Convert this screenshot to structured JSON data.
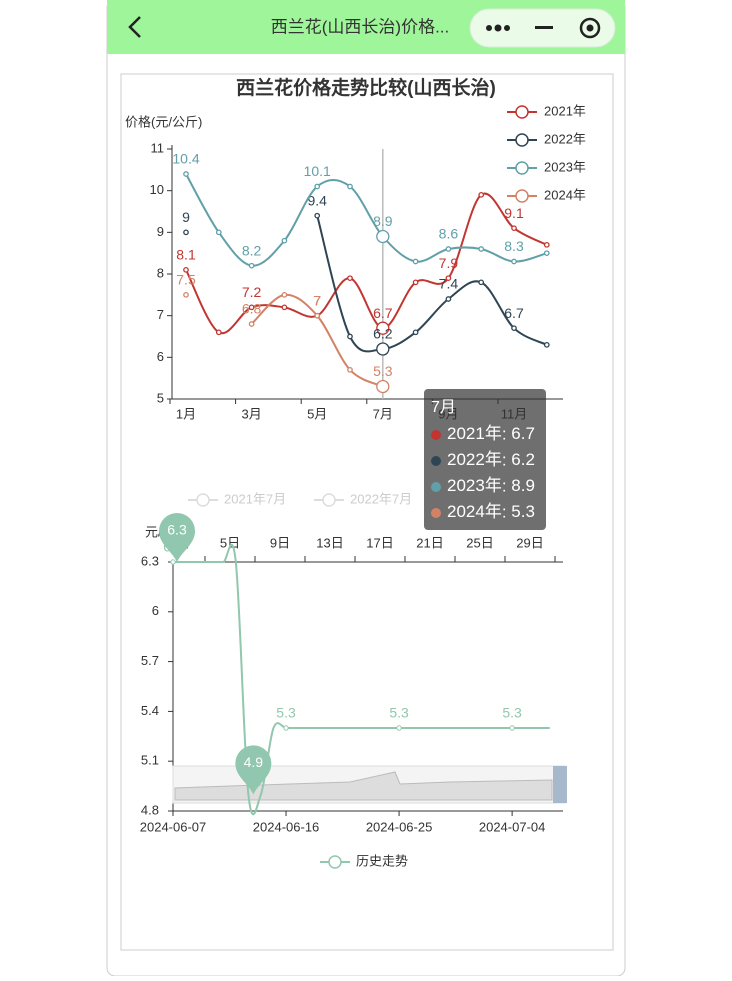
{
  "header": {
    "title": "西兰花(山西长治)价格..."
  },
  "chart_data": [
    {
      "type": "line",
      "title": "西兰花价格走势比较(山西长治)",
      "y_label": "价格(元/公斤)",
      "categories": [
        "1月",
        null,
        "3月",
        null,
        "5月",
        null,
        "7月",
        null,
        "9月",
        null,
        "11月",
        null
      ],
      "series": [
        {
          "name": "2021年",
          "color": "#c23531",
          "values": [
            8.1,
            6.6,
            7.2,
            7.2,
            7.0,
            7.9,
            6.7,
            7.8,
            7.9,
            9.9,
            9.1,
            8.7
          ]
        },
        {
          "name": "2022年",
          "color": "#2f4554",
          "values": [
            9,
            null,
            null,
            null,
            9.4,
            6.5,
            6.2,
            6.6,
            7.4,
            7.8,
            6.7,
            6.3
          ]
        },
        {
          "name": "2023年",
          "color": "#61a0a8",
          "values": [
            10.4,
            9.0,
            8.2,
            8.8,
            10.1,
            10.1,
            8.9,
            8.3,
            8.6,
            8.6,
            8.3,
            8.5
          ]
        },
        {
          "name": "2024年",
          "color": "#d48265",
          "values": [
            7.5,
            null,
            6.8,
            7.5,
            7.0,
            5.7,
            5.3,
            null,
            null,
            null,
            null,
            null
          ]
        }
      ],
      "ylim": [
        5,
        11
      ],
      "yticks": [
        5,
        6,
        7,
        8,
        9,
        10,
        11
      ],
      "legend": "top-right",
      "tooltip": "7月"
    },
    {
      "type": "line",
      "y_label": "元/公斤",
      "inactive_legend": [
        "2021年7月",
        "2022年7月"
      ],
      "top_axis": [
        "1日",
        "5日",
        "9日",
        "13日",
        "17日",
        "21日",
        "25日",
        "29日"
      ],
      "x": [
        "2024-06-07",
        "2024-06-08",
        "2024-06-09",
        "2024-06-10",
        "2024-06-11",
        "2024-06-12",
        "2024-06-13",
        "2024-06-14",
        "2024-06-15",
        "2024-06-16",
        "2024-06-17",
        "2024-06-18",
        "2024-06-19",
        "2024-06-20",
        "2024-06-21",
        "2024-06-22",
        "2024-06-23",
        "2024-06-24",
        "2024-06-25",
        "2024-06-26",
        "2024-06-27",
        "2024-06-28",
        "2024-06-29",
        "2024-06-30",
        "2024-07-01",
        "2024-07-02",
        "2024-07-03",
        "2024-07-04",
        "2024-07-05",
        "2024-07-06",
        "2024-07-07"
      ],
      "xticks": [
        "2024-06-07",
        "2024-06-16",
        "2024-06-25",
        "2024-07-04"
      ],
      "series": [
        {
          "name": "历史走势",
          "color": "#91c7ae",
          "values": [
            6.3,
            6.3,
            6.3,
            6.3,
            6.3,
            6.3,
            4.9,
            4.9,
            5.3,
            5.3,
            5.3,
            5.3,
            5.3,
            5.3,
            5.3,
            5.3,
            5.3,
            5.3,
            5.3,
            5.3,
            5.3,
            5.3,
            5.3,
            5.3,
            5.3,
            5.3,
            5.3,
            5.3,
            5.3,
            5.3,
            5.3
          ]
        }
      ],
      "ylim": [
        4.8,
        6.3
      ],
      "yticks": [
        4.8,
        5.1,
        5.4,
        5.7,
        6,
        6.3
      ],
      "mark_points": {
        "max": 6.3,
        "min": 4.9
      },
      "legend": "bottom"
    }
  ]
}
